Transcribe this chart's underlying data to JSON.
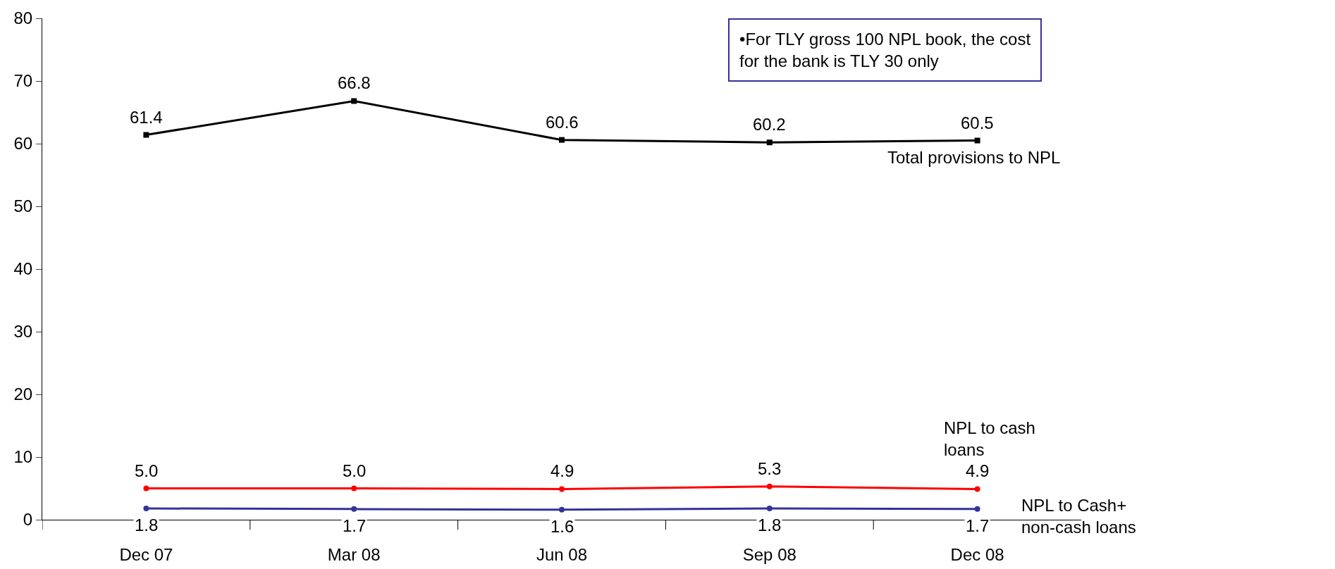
{
  "chart_data": {
    "type": "line",
    "categories": [
      "Dec 07",
      "Mar 08",
      "Jun 08",
      "Sep 08",
      "Dec 08"
    ],
    "series": [
      {
        "name": "Total provisions to NPL",
        "color": "#000000",
        "marker": "square",
        "values": [
          61.4,
          66.8,
          60.6,
          60.2,
          60.5
        ],
        "value_labels": [
          "61.4",
          "66.8",
          "60.6",
          "60.2",
          "60.5"
        ]
      },
      {
        "name": "NPL to cash loans",
        "color": "#ff0000",
        "marker": "circle",
        "values": [
          5.0,
          5.0,
          4.9,
          5.3,
          4.9
        ],
        "value_labels": [
          "5.0",
          "5.0",
          "4.9",
          "5.3",
          "4.9"
        ]
      },
      {
        "name": "NPL to Cash+ non-cash loans",
        "color": "#333399",
        "marker": "circle",
        "values": [
          1.8,
          1.7,
          1.6,
          1.8,
          1.7
        ],
        "value_labels": [
          "1.8",
          "1.7",
          "1.6",
          "1.8",
          "1.7"
        ]
      }
    ],
    "ylim": [
      0,
      80
    ],
    "yticks": [
      0,
      10,
      20,
      30,
      40,
      50,
      60,
      70,
      80
    ],
    "grid": false,
    "line_style": "solid",
    "annotations": [
      "•For TLY gross 100 NPL book, the cost for the bank is TLY 30 only"
    ]
  }
}
